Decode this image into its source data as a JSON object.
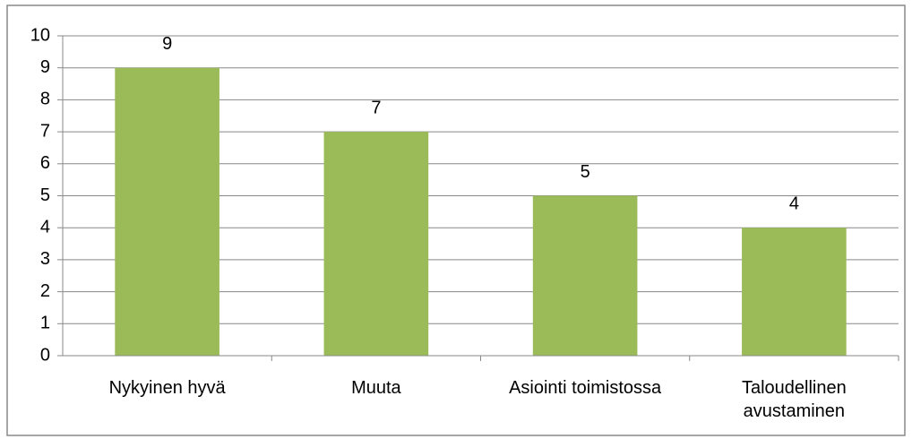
{
  "chart_data": {
    "type": "bar",
    "categories": [
      "Nykyinen hyvä",
      "Muuta",
      "Asiointi toimistossa",
      "Taloudellinen avustaminen"
    ],
    "values": [
      9,
      7,
      5,
      4
    ],
    "color": "#9bbb59",
    "ylim": [
      0,
      10
    ],
    "yticks": [
      0,
      1,
      2,
      3,
      4,
      5,
      6,
      7,
      8,
      9,
      10
    ],
    "grid": true
  }
}
